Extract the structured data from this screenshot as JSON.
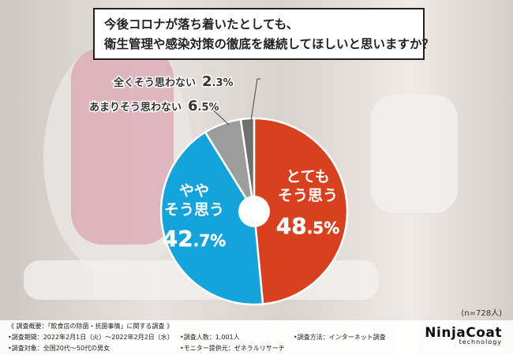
{
  "question": {
    "line1": "今後コロナが落ち着いたとしても、",
    "line2": "衛生管理や感染対策の徹底を継続してほしいと思いますか？"
  },
  "chart_data": {
    "type": "pie",
    "title": "今後コロナが落ち着いたとしても、衛生管理や感染対策の徹底を継続してほしいと思いますか？",
    "slices": [
      {
        "label_lines": [
          "とても",
          "そう思う"
        ],
        "value": 48.5,
        "int": "48",
        "dec": ".5%",
        "color": "#d9401e"
      },
      {
        "label_lines": [
          "やや",
          "そう思う"
        ],
        "value": 42.7,
        "int": "42",
        "dec": ".7%",
        "color": "#14a4dc"
      },
      {
        "label": "あまりそう思わない",
        "value": 6.5,
        "int": "6",
        "dec": ".5%",
        "color": "#9c9c9c"
      },
      {
        "label": "全くそう思わない",
        "value": 2.3,
        "int": "2",
        "dec": ".3%",
        "color": "#6f6f6f"
      }
    ]
  },
  "sample": "(n=728人)",
  "footer": {
    "header": "《 調査概要：「飲食店の除菌・抗菌事情」に関する調査 》",
    "period": "•調査期間：2022年2月1日（火）〜2022年2月2日（水）",
    "target": "•調査対象：全国20代〜50代の男女",
    "count": "•調査人数：1,001人",
    "monitor": "•モニター提供元：ゼネラルリサーチ",
    "method": "•調査方法：インターネット調査"
  },
  "logo": {
    "main": "NinjaCoat",
    "sub": "technology"
  }
}
